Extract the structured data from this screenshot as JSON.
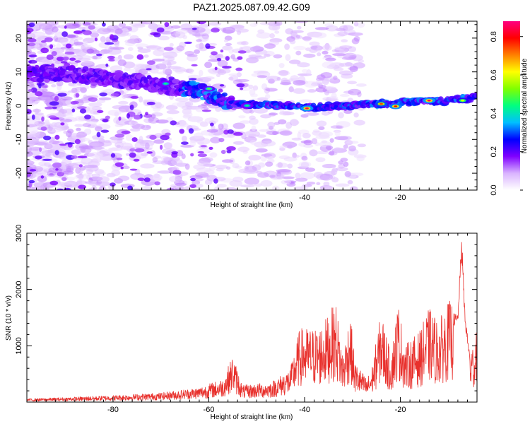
{
  "title": "PAZ1.2025.087.09.42.G09",
  "chart_data": [
    {
      "type": "heatmap",
      "xlabel": "Height of straight line (km)",
      "ylabel": "Frequency (Hz)",
      "xlim": [
        -98,
        -4
      ],
      "ylim": [
        -25,
        25
      ],
      "xticks": [
        -80,
        -60,
        -40,
        -20
      ],
      "yticks": [
        -20,
        -10,
        0,
        10,
        20
      ],
      "colorbar": {
        "label": "Normalized spectral amplitude",
        "range": [
          0,
          0.88
        ],
        "ticks": [
          0.0,
          0.2,
          0.4,
          0.6,
          0.8
        ],
        "colors": [
          "#ffffff",
          "#d9b3ff",
          "#7f00ff",
          "#0000ff",
          "#00bfff",
          "#00ff80",
          "#80ff00",
          "#ffff00",
          "#ff8000",
          "#ff0000",
          "#ff0080"
        ]
      },
      "ridge": [
        {
          "x": -90,
          "y": 9.5
        },
        {
          "x": -80,
          "y": 8
        },
        {
          "x": -70,
          "y": 6
        },
        {
          "x": -62,
          "y": 4.5
        },
        {
          "x": -55,
          "y": 0.5
        },
        {
          "x": -45,
          "y": 0
        },
        {
          "x": -40,
          "y": -0.5
        },
        {
          "x": -30,
          "y": 0
        },
        {
          "x": -20,
          "y": 1
        },
        {
          "x": -10,
          "y": 1.5
        },
        {
          "x": -4,
          "y": 2.5
        }
      ],
      "hotspots": [
        {
          "x": -69,
          "y": 6.5,
          "value": 0.45
        },
        {
          "x": -60,
          "y": 5,
          "value": 0.5
        },
        {
          "x": -52,
          "y": 0,
          "value": 0.45
        },
        {
          "x": -39.5,
          "y": -0.8,
          "value": 0.85
        },
        {
          "x": -24,
          "y": 0.5,
          "value": 0.75
        },
        {
          "x": -21,
          "y": -0.2,
          "value": 0.8
        },
        {
          "x": -14,
          "y": 1.5,
          "value": 0.85
        },
        {
          "x": -7,
          "y": 1.5,
          "value": 0.6
        }
      ]
    },
    {
      "type": "line",
      "xlabel": "Height of straight line (km)",
      "ylabel": "SNR (10 * v/v)",
      "xlim": [
        -98,
        -4
      ],
      "ylim": [
        0,
        3000
      ],
      "xticks": [
        -80,
        -60,
        -40,
        -20
      ],
      "yticks": [
        1000,
        2000,
        3000
      ],
      "color": "#e8302c",
      "envelope": [
        {
          "x": -98,
          "y": 50
        },
        {
          "x": -90,
          "y": 70
        },
        {
          "x": -80,
          "y": 100
        },
        {
          "x": -70,
          "y": 140
        },
        {
          "x": -62,
          "y": 220
        },
        {
          "x": -57,
          "y": 350
        },
        {
          "x": -55,
          "y": 700
        },
        {
          "x": -53,
          "y": 250
        },
        {
          "x": -47,
          "y": 300
        },
        {
          "x": -43,
          "y": 500
        },
        {
          "x": -41,
          "y": 1100
        },
        {
          "x": -37,
          "y": 1100
        },
        {
          "x": -35,
          "y": 1300
        },
        {
          "x": -33.5,
          "y": 1500
        },
        {
          "x": -32,
          "y": 700
        },
        {
          "x": -30.5,
          "y": 1350
        },
        {
          "x": -29.5,
          "y": 600
        },
        {
          "x": -27,
          "y": 350
        },
        {
          "x": -26,
          "y": 500
        },
        {
          "x": -24,
          "y": 1350
        },
        {
          "x": -22,
          "y": 700
        },
        {
          "x": -20.5,
          "y": 1500
        },
        {
          "x": -19,
          "y": 850
        },
        {
          "x": -16,
          "y": 1050
        },
        {
          "x": -14,
          "y": 1400
        },
        {
          "x": -12,
          "y": 1200
        },
        {
          "x": -10,
          "y": 1500
        },
        {
          "x": -8,
          "y": 1500
        },
        {
          "x": -7.2,
          "y": 2850
        },
        {
          "x": -6.5,
          "y": 1500
        },
        {
          "x": -5.5,
          "y": 800
        },
        {
          "x": -4.5,
          "y": 900
        },
        {
          "x": -4,
          "y": 1500
        }
      ]
    }
  ]
}
